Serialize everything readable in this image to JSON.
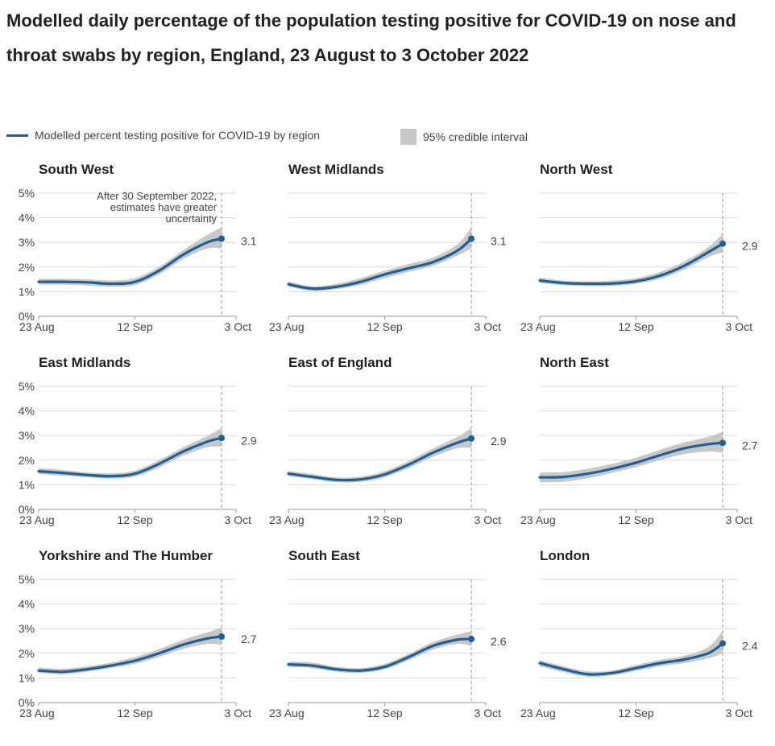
{
  "title": "Modelled daily percentage of the population testing positive for COVID-19 on nose and throat swabs by region, England, 23 August to 3 October 2022",
  "legend": {
    "line_label": "Modelled percent testing positive for COVID-19 by region",
    "band_label": "95% credible interval"
  },
  "colors": {
    "line": "#206095",
    "band": "#c8c8c8",
    "axis": "#999999",
    "grid": "#d9d9d9",
    "text": "#444444"
  },
  "annotation": "After 30 September 2022, estimates have greater uncertainty",
  "chart_data": [
    {
      "type": "line",
      "title": "South West",
      "value_label": "3.1",
      "ylim": [
        0,
        5
      ],
      "yticks": [
        "0%",
        "1%",
        "2%",
        "3%",
        "4%",
        "5%"
      ],
      "xticks": [
        "23 Aug",
        "12 Sep",
        "3 Oct"
      ],
      "x": [
        "23 Aug",
        "28 Aug",
        "2 Sep",
        "7 Sep",
        "12 Sep",
        "17 Sep",
        "22 Sep",
        "27 Sep",
        "30 Sep"
      ],
      "values": [
        1.4,
        1.4,
        1.38,
        1.32,
        1.4,
        1.85,
        2.5,
        3.0,
        3.15
      ],
      "lower": [
        1.28,
        1.28,
        1.25,
        1.2,
        1.27,
        1.7,
        2.32,
        2.75,
        2.75
      ],
      "upper": [
        1.52,
        1.52,
        1.5,
        1.45,
        1.55,
        2.0,
        2.68,
        3.3,
        3.6
      ]
    },
    {
      "type": "line",
      "title": "West Midlands",
      "value_label": "3.1",
      "ylim": [
        0,
        5
      ],
      "yticks": [
        "0%",
        "1%",
        "2%",
        "3%",
        "4%",
        "5%"
      ],
      "xticks": [
        "23 Aug",
        "12 Sep",
        "3 Oct"
      ],
      "x": [
        "23 Aug",
        "28 Aug",
        "2 Sep",
        "7 Sep",
        "12 Sep",
        "17 Sep",
        "22 Sep",
        "27 Sep",
        "30 Sep"
      ],
      "values": [
        1.3,
        1.12,
        1.2,
        1.4,
        1.7,
        1.95,
        2.2,
        2.65,
        3.15
      ],
      "lower": [
        1.2,
        1.03,
        1.1,
        1.27,
        1.55,
        1.8,
        2.05,
        2.45,
        2.75
      ],
      "upper": [
        1.42,
        1.22,
        1.32,
        1.55,
        1.85,
        2.12,
        2.38,
        2.9,
        3.6
      ]
    },
    {
      "type": "line",
      "title": "North West",
      "value_label": "2.9",
      "ylim": [
        0,
        5
      ],
      "yticks": [
        "0%",
        "1%",
        "2%",
        "3%",
        "4%",
        "5%"
      ],
      "xticks": [
        "23 Aug",
        "12 Sep",
        "3 Oct"
      ],
      "x": [
        "23 Aug",
        "28 Aug",
        "2 Sep",
        "7 Sep",
        "12 Sep",
        "17 Sep",
        "22 Sep",
        "27 Sep",
        "30 Sep"
      ],
      "values": [
        1.45,
        1.35,
        1.32,
        1.33,
        1.42,
        1.65,
        2.05,
        2.6,
        2.95
      ],
      "lower": [
        1.35,
        1.26,
        1.23,
        1.23,
        1.32,
        1.52,
        1.9,
        2.4,
        2.6
      ],
      "upper": [
        1.57,
        1.45,
        1.42,
        1.45,
        1.55,
        1.8,
        2.22,
        2.8,
        3.35
      ]
    },
    {
      "type": "line",
      "title": "East Midlands",
      "value_label": "2.9",
      "ylim": [
        0,
        5
      ],
      "yticks": [
        "0%",
        "1%",
        "2%",
        "3%",
        "4%",
        "5%"
      ],
      "xticks": [
        "23 Aug",
        "12 Sep",
        "3 Oct"
      ],
      "x": [
        "23 Aug",
        "28 Aug",
        "2 Sep",
        "7 Sep",
        "12 Sep",
        "17 Sep",
        "22 Sep",
        "27 Sep",
        "30 Sep"
      ],
      "values": [
        1.55,
        1.48,
        1.4,
        1.35,
        1.45,
        1.85,
        2.35,
        2.75,
        2.9
      ],
      "lower": [
        1.43,
        1.37,
        1.3,
        1.25,
        1.33,
        1.7,
        2.18,
        2.52,
        2.55
      ],
      "upper": [
        1.68,
        1.6,
        1.5,
        1.47,
        1.58,
        2.0,
        2.52,
        2.98,
        3.3
      ]
    },
    {
      "type": "line",
      "title": "East of England",
      "value_label": "2.9",
      "ylim": [
        0,
        5
      ],
      "yticks": [
        "0%",
        "1%",
        "2%",
        "3%",
        "4%",
        "5%"
      ],
      "xticks": [
        "23 Aug",
        "12 Sep",
        "3 Oct"
      ],
      "x": [
        "23 Aug",
        "28 Aug",
        "2 Sep",
        "7 Sep",
        "12 Sep",
        "17 Sep",
        "22 Sep",
        "27 Sep",
        "30 Sep"
      ],
      "values": [
        1.45,
        1.32,
        1.2,
        1.22,
        1.42,
        1.82,
        2.3,
        2.7,
        2.88
      ],
      "lower": [
        1.35,
        1.23,
        1.1,
        1.12,
        1.3,
        1.68,
        2.13,
        2.48,
        2.5
      ],
      "upper": [
        1.57,
        1.43,
        1.3,
        1.33,
        1.55,
        1.97,
        2.47,
        2.93,
        3.3
      ]
    },
    {
      "type": "line",
      "title": "North East",
      "value_label": "2.7",
      "ylim": [
        0,
        5
      ],
      "yticks": [
        "0%",
        "1%",
        "2%",
        "3%",
        "4%",
        "5%"
      ],
      "xticks": [
        "23 Aug",
        "12 Sep",
        "3 Oct"
      ],
      "x": [
        "23 Aug",
        "28 Aug",
        "2 Sep",
        "7 Sep",
        "12 Sep",
        "17 Sep",
        "22 Sep",
        "27 Sep",
        "30 Sep"
      ],
      "values": [
        1.3,
        1.32,
        1.45,
        1.65,
        1.9,
        2.2,
        2.48,
        2.65,
        2.7
      ],
      "lower": [
        1.1,
        1.12,
        1.27,
        1.48,
        1.72,
        2.0,
        2.25,
        2.35,
        2.3
      ],
      "upper": [
        1.5,
        1.52,
        1.65,
        1.85,
        2.1,
        2.42,
        2.72,
        2.95,
        3.15
      ]
    },
    {
      "type": "line",
      "title": "Yorkshire and The Humber",
      "value_label": "2.7",
      "ylim": [
        0,
        5
      ],
      "yticks": [
        "0%",
        "1%",
        "2%",
        "3%",
        "4%",
        "5%"
      ],
      "xticks": [
        "23 Aug",
        "12 Sep",
        "3 Oct"
      ],
      "x": [
        "23 Aug",
        "28 Aug",
        "2 Sep",
        "7 Sep",
        "12 Sep",
        "17 Sep",
        "22 Sep",
        "27 Sep",
        "30 Sep"
      ],
      "values": [
        1.3,
        1.25,
        1.35,
        1.5,
        1.7,
        2.0,
        2.35,
        2.6,
        2.68
      ],
      "lower": [
        1.2,
        1.15,
        1.25,
        1.4,
        1.57,
        1.85,
        2.18,
        2.38,
        2.35
      ],
      "upper": [
        1.42,
        1.37,
        1.47,
        1.62,
        1.85,
        2.17,
        2.55,
        2.85,
        3.05
      ]
    },
    {
      "type": "line",
      "title": "South East",
      "value_label": "2.6",
      "ylim": [
        0,
        5
      ],
      "yticks": [
        "0%",
        "1%",
        "2%",
        "3%",
        "4%",
        "5%"
      ],
      "xticks": [
        "23 Aug",
        "12 Sep",
        "3 Oct"
      ],
      "x": [
        "23 Aug",
        "28 Aug",
        "2 Sep",
        "7 Sep",
        "12 Sep",
        "17 Sep",
        "22 Sep",
        "27 Sep",
        "30 Sep"
      ],
      "values": [
        1.55,
        1.5,
        1.35,
        1.3,
        1.45,
        1.85,
        2.3,
        2.55,
        2.58
      ],
      "lower": [
        1.45,
        1.4,
        1.25,
        1.2,
        1.35,
        1.72,
        2.15,
        2.38,
        2.3
      ],
      "upper": [
        1.67,
        1.62,
        1.45,
        1.4,
        1.57,
        1.98,
        2.45,
        2.75,
        2.9
      ]
    },
    {
      "type": "line",
      "title": "London",
      "value_label": "2.4",
      "ylim": [
        0,
        5
      ],
      "yticks": [
        "0%",
        "1%",
        "2%",
        "3%",
        "4%",
        "5%"
      ],
      "xticks": [
        "23 Aug",
        "12 Sep",
        "3 Oct"
      ],
      "x": [
        "23 Aug",
        "28 Aug",
        "2 Sep",
        "7 Sep",
        "12 Sep",
        "17 Sep",
        "22 Sep",
        "27 Sep",
        "30 Sep"
      ],
      "values": [
        1.6,
        1.35,
        1.15,
        1.2,
        1.4,
        1.6,
        1.75,
        2.0,
        2.4
      ],
      "lower": [
        1.47,
        1.23,
        1.05,
        1.1,
        1.28,
        1.47,
        1.6,
        1.8,
        2.0
      ],
      "upper": [
        1.73,
        1.47,
        1.27,
        1.3,
        1.53,
        1.73,
        1.9,
        2.25,
        2.9
      ]
    }
  ]
}
